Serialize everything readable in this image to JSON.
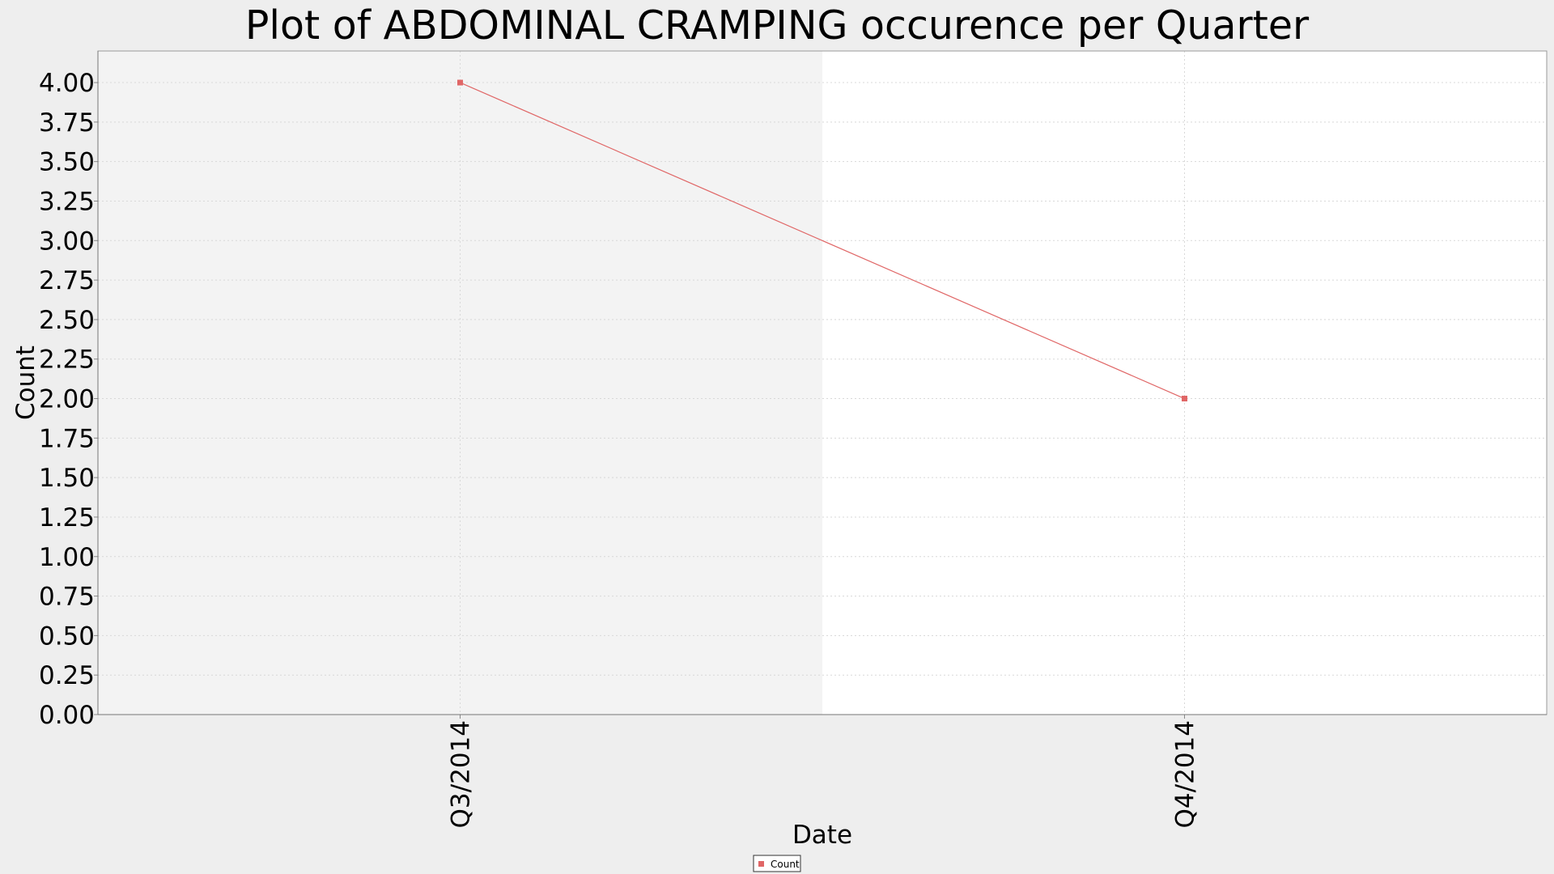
{
  "chart_data": {
    "type": "line",
    "title": "Plot of ABDOMINAL CRAMPING occurence per Quarter",
    "xlabel": "Date",
    "ylabel": "Count",
    "categories": [
      "Q3/2014",
      "Q4/2014"
    ],
    "series": [
      {
        "name": "Count",
        "values": [
          4,
          2
        ],
        "color": "#e06666"
      }
    ],
    "ylim": [
      0,
      4.2
    ],
    "yticks": [
      "0.00",
      "0.25",
      "0.50",
      "0.75",
      "1.00",
      "1.25",
      "1.50",
      "1.75",
      "2.00",
      "2.25",
      "2.50",
      "2.75",
      "3.00",
      "3.25",
      "3.50",
      "3.75",
      "4.00"
    ],
    "grid": true,
    "legend_position": "bottom-center",
    "colors": {
      "page_background": "#eeeeee",
      "plot_band_shaded": "#f3f3f3",
      "plot_band_plain": "#ffffff",
      "series": "#e06666"
    }
  }
}
